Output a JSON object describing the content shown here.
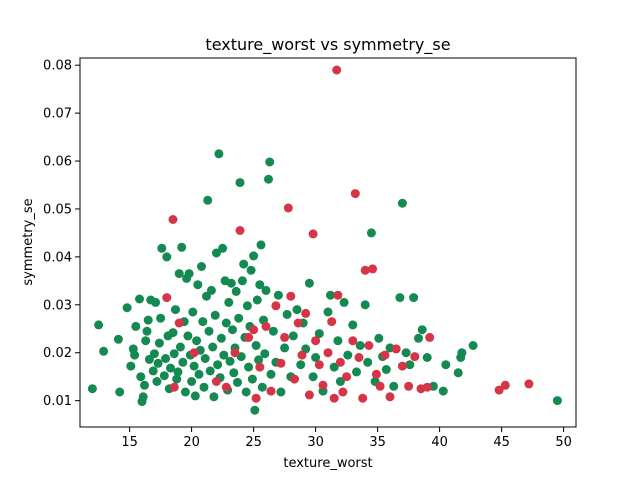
{
  "chart_data": {
    "type": "scatter",
    "title": "texture_worst vs symmetry_se",
    "xlabel": "texture_worst",
    "ylabel": "symmetry_se",
    "xlim": [
      11.0,
      51.0
    ],
    "ylim": [
      0.0045,
      0.0815
    ],
    "xticks": [
      15,
      20,
      25,
      30,
      35,
      40,
      45,
      50
    ],
    "yticks": [
      0.01,
      0.02,
      0.03,
      0.04,
      0.05,
      0.06,
      0.07,
      0.08
    ],
    "yticks_text": [
      "0.01",
      "0.02",
      "0.03",
      "0.04",
      "0.05",
      "0.06",
      "0.07",
      "0.08"
    ],
    "grid": false,
    "colors": {
      "green": "#148a52",
      "red": "#d63447"
    },
    "series": [
      {
        "color": "#148a52",
        "points": [
          [
            12.0,
            0.0125
          ],
          [
            12.5,
            0.0258
          ],
          [
            12.9,
            0.0203
          ],
          [
            14.1,
            0.0228
          ],
          [
            14.2,
            0.0118
          ],
          [
            14.8,
            0.0294
          ],
          [
            15.1,
            0.0172
          ],
          [
            15.3,
            0.0208
          ],
          [
            15.4,
            0.0195
          ],
          [
            15.5,
            0.0255
          ],
          [
            15.8,
            0.0312
          ],
          [
            15.9,
            0.015
          ],
          [
            16.0,
            0.0098
          ],
          [
            16.1,
            0.0108
          ],
          [
            16.2,
            0.0132
          ],
          [
            16.3,
            0.0225
          ],
          [
            16.4,
            0.0245
          ],
          [
            16.5,
            0.0268
          ],
          [
            16.6,
            0.0186
          ],
          [
            16.7,
            0.031
          ],
          [
            16.9,
            0.0162
          ],
          [
            17.0,
            0.0198
          ],
          [
            17.1,
            0.0305
          ],
          [
            17.2,
            0.014
          ],
          [
            17.3,
            0.0178
          ],
          [
            17.4,
            0.022
          ],
          [
            17.5,
            0.0272
          ],
          [
            17.6,
            0.0418
          ],
          [
            17.8,
            0.0152
          ],
          [
            17.9,
            0.0188
          ],
          [
            18.0,
            0.04
          ],
          [
            18.1,
            0.0235
          ],
          [
            18.2,
            0.0125
          ],
          [
            18.3,
            0.0168
          ],
          [
            18.5,
            0.0242
          ],
          [
            18.6,
            0.0198
          ],
          [
            18.7,
            0.029
          ],
          [
            18.8,
            0.0145
          ],
          [
            18.9,
            0.016
          ],
          [
            19.0,
            0.0365
          ],
          [
            19.1,
            0.0212
          ],
          [
            19.2,
            0.042
          ],
          [
            19.3,
            0.018
          ],
          [
            19.4,
            0.0265
          ],
          [
            19.5,
            0.0118
          ],
          [
            19.6,
            0.0355
          ],
          [
            19.7,
            0.0235
          ],
          [
            19.8,
            0.0365
          ],
          [
            19.9,
            0.0195
          ],
          [
            20.0,
            0.014
          ],
          [
            20.1,
            0.0285
          ],
          [
            20.2,
            0.0172
          ],
          [
            20.3,
            0.011
          ],
          [
            20.4,
            0.0225
          ],
          [
            20.5,
            0.0342
          ],
          [
            20.6,
            0.0155
          ],
          [
            20.7,
            0.0205
          ],
          [
            20.8,
            0.038
          ],
          [
            20.9,
            0.0265
          ],
          [
            21.0,
            0.0128
          ],
          [
            21.1,
            0.0188
          ],
          [
            21.2,
            0.0318
          ],
          [
            21.3,
            0.0518
          ],
          [
            21.4,
            0.0245
          ],
          [
            21.5,
            0.0162
          ],
          [
            21.6,
            0.033
          ],
          [
            21.7,
            0.0212
          ],
          [
            21.8,
            0.0108
          ],
          [
            21.9,
            0.0278
          ],
          [
            22.0,
            0.0408
          ],
          [
            22.1,
            0.0175
          ],
          [
            22.2,
            0.0615
          ],
          [
            22.3,
            0.0148
          ],
          [
            22.4,
            0.023
          ],
          [
            22.5,
            0.0418
          ],
          [
            22.6,
            0.0195
          ],
          [
            22.7,
            0.035
          ],
          [
            22.8,
            0.0262
          ],
          [
            22.9,
            0.0122
          ],
          [
            23.0,
            0.0305
          ],
          [
            23.1,
            0.0182
          ],
          [
            23.2,
            0.0345
          ],
          [
            23.3,
            0.0248
          ],
          [
            23.4,
            0.0158
          ],
          [
            23.5,
            0.021
          ],
          [
            23.6,
            0.0328
          ],
          [
            23.7,
            0.0138
          ],
          [
            23.8,
            0.0272
          ],
          [
            23.9,
            0.0555
          ],
          [
            24.0,
            0.0192
          ],
          [
            24.1,
            0.035
          ],
          [
            24.2,
            0.0385
          ],
          [
            24.3,
            0.0232
          ],
          [
            24.4,
            0.0118
          ],
          [
            24.5,
            0.0298
          ],
          [
            24.6,
            0.017
          ],
          [
            24.7,
            0.0255
          ],
          [
            24.8,
            0.0372
          ],
          [
            24.9,
            0.0145
          ],
          [
            25.0,
            0.0402
          ],
          [
            25.1,
            0.008
          ],
          [
            25.2,
            0.0215
          ],
          [
            25.3,
            0.031
          ],
          [
            25.4,
            0.0185
          ],
          [
            25.5,
            0.0342
          ],
          [
            25.6,
            0.0425
          ],
          [
            25.7,
            0.0128
          ],
          [
            25.8,
            0.0268
          ],
          [
            25.9,
            0.0198
          ],
          [
            26.0,
            0.033
          ],
          [
            26.2,
            0.0562
          ],
          [
            26.3,
            0.0598
          ],
          [
            26.4,
            0.0155
          ],
          [
            26.6,
            0.0245
          ],
          [
            26.8,
            0.018
          ],
          [
            27.0,
            0.032
          ],
          [
            27.2,
            0.0118
          ],
          [
            27.5,
            0.021
          ],
          [
            27.7,
            0.028
          ],
          [
            28.0,
            0.015
          ],
          [
            28.2,
            0.0235
          ],
          [
            28.5,
            0.029
          ],
          [
            28.8,
            0.0175
          ],
          [
            29.0,
            0.0262
          ],
          [
            29.2,
            0.0208
          ],
          [
            29.5,
            0.0345
          ],
          [
            29.8,
            0.015
          ],
          [
            30.0,
            0.019
          ],
          [
            30.3,
            0.024
          ],
          [
            30.6,
            0.012
          ],
          [
            31.0,
            0.0285
          ],
          [
            31.2,
            0.032
          ],
          [
            31.5,
            0.017
          ],
          [
            31.8,
            0.0225
          ],
          [
            32.0,
            0.014
          ],
          [
            32.3,
            0.0305
          ],
          [
            32.6,
            0.0195
          ],
          [
            33.0,
            0.0258
          ],
          [
            33.3,
            0.016
          ],
          [
            33.6,
            0.0215
          ],
          [
            34.0,
            0.03
          ],
          [
            34.2,
            0.018
          ],
          [
            34.5,
            0.045
          ],
          [
            34.8,
            0.014
          ],
          [
            35.1,
            0.023
          ],
          [
            35.4,
            0.0192
          ],
          [
            35.7,
            0.0165
          ],
          [
            36.0,
            0.021
          ],
          [
            36.3,
            0.013
          ],
          [
            36.8,
            0.0315
          ],
          [
            37.0,
            0.0512
          ],
          [
            37.3,
            0.02
          ],
          [
            37.6,
            0.0175
          ],
          [
            37.9,
            0.0315
          ],
          [
            38.3,
            0.023
          ],
          [
            38.6,
            0.0248
          ],
          [
            39.0,
            0.019
          ],
          [
            39.5,
            0.013
          ],
          [
            40.3,
            0.012
          ],
          [
            40.5,
            0.0175
          ],
          [
            41.5,
            0.0158
          ],
          [
            41.7,
            0.019
          ],
          [
            41.8,
            0.02
          ],
          [
            42.7,
            0.0215
          ],
          [
            49.5,
            0.01
          ]
        ]
      },
      {
        "color": "#d63447",
        "points": [
          [
            18.0,
            0.0315
          ],
          [
            18.5,
            0.0478
          ],
          [
            18.6,
            0.0128
          ],
          [
            19.0,
            0.0262
          ],
          [
            20.2,
            0.02
          ],
          [
            22.0,
            0.014
          ],
          [
            22.8,
            0.0128
          ],
          [
            23.5,
            0.02
          ],
          [
            23.9,
            0.0455
          ],
          [
            24.6,
            0.0232
          ],
          [
            25.0,
            0.0248
          ],
          [
            25.2,
            0.0105
          ],
          [
            25.5,
            0.017
          ],
          [
            26.0,
            0.0255
          ],
          [
            26.4,
            0.012
          ],
          [
            26.8,
            0.0298
          ],
          [
            27.2,
            0.0178
          ],
          [
            27.5,
            0.0232
          ],
          [
            27.8,
            0.0502
          ],
          [
            28.0,
            0.0318
          ],
          [
            28.3,
            0.0145
          ],
          [
            28.6,
            0.0262
          ],
          [
            28.9,
            0.0195
          ],
          [
            29.2,
            0.0282
          ],
          [
            29.5,
            0.0112
          ],
          [
            29.8,
            0.0448
          ],
          [
            30.0,
            0.0225
          ],
          [
            30.3,
            0.0175
          ],
          [
            30.6,
            0.0132
          ],
          [
            31.0,
            0.02
          ],
          [
            31.3,
            0.0265
          ],
          [
            31.5,
            0.0105
          ],
          [
            31.7,
            0.079
          ],
          [
            31.8,
            0.032
          ],
          [
            32.0,
            0.018
          ],
          [
            32.2,
            0.0118
          ],
          [
            32.5,
            0.015
          ],
          [
            33.0,
            0.0225
          ],
          [
            33.2,
            0.0532
          ],
          [
            33.5,
            0.019
          ],
          [
            33.8,
            0.0105
          ],
          [
            34.0,
            0.0372
          ],
          [
            34.3,
            0.0215
          ],
          [
            34.6,
            0.0375
          ],
          [
            34.9,
            0.0155
          ],
          [
            35.2,
            0.013
          ],
          [
            35.6,
            0.0195
          ],
          [
            36.0,
            0.0108
          ],
          [
            36.5,
            0.0208
          ],
          [
            37.0,
            0.0172
          ],
          [
            37.5,
            0.013
          ],
          [
            38.0,
            0.0192
          ],
          [
            38.5,
            0.0125
          ],
          [
            39.0,
            0.0128
          ],
          [
            39.2,
            0.0232
          ],
          [
            44.8,
            0.0122
          ],
          [
            45.3,
            0.0132
          ],
          [
            47.2,
            0.0135
          ]
        ]
      }
    ]
  }
}
